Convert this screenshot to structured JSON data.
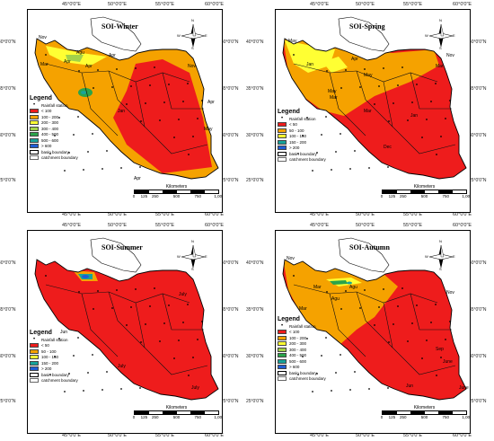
{
  "colors": {
    "red": "#ee1c1c",
    "orange": "#f5a200",
    "yellow": "#ffff33",
    "lime": "#a3d14a",
    "green": "#2aa34a",
    "teal": "#16a39a",
    "blue": "#1f5dd4"
  },
  "axes": {
    "x_ticks": [
      "45°0'0\"E",
      "50°0'0\"E",
      "55°0'0\"E",
      "60°0'0\"E"
    ],
    "y_ticks": [
      "40°0'0\"N",
      "35°0'0\"N",
      "30°0'0\"N",
      "25°0'0\"N"
    ]
  },
  "compass_letters": [
    "N",
    "E",
    "S",
    "W"
  ],
  "scale": {
    "title": "Kilometers",
    "ticks": [
      "0",
      "125",
      "250",
      "500",
      "750",
      "1,000"
    ]
  },
  "panels": [
    {
      "title": "SOI-Winter",
      "legend_title": "Legend",
      "station_label": "Rainfall station",
      "classes": [
        {
          "label": "< 100",
          "color": "#ee1c1c"
        },
        {
          "label": "100 - 200",
          "color": "#f5a200"
        },
        {
          "label": "200 - 300",
          "color": "#ffff33"
        },
        {
          "label": "300 - 400",
          "color": "#a3d14a"
        },
        {
          "label": "400 - 500",
          "color": "#2aa34a"
        },
        {
          "label": "500 - 600",
          "color": "#16a39a"
        },
        {
          "label": "> 600",
          "color": "#1f5dd4"
        }
      ],
      "boundary_labels": [
        "basin boundary",
        "catchment boundary"
      ],
      "month_labels": [
        "Nov",
        "Mar",
        "Apr",
        "Agu",
        "Apr",
        "Apr",
        "Nov",
        "Apr",
        "May",
        "Apr",
        "Jan"
      ]
    },
    {
      "title": "SOI-Spring",
      "legend_title": "Legend",
      "station_label": "Rainfall station",
      "classes": [
        {
          "label": "< 50",
          "color": "#ee1c1c"
        },
        {
          "label": "50 - 100",
          "color": "#f5a200"
        },
        {
          "label": "100 - 150",
          "color": "#ffff33"
        },
        {
          "label": "150 - 200",
          "color": "#16a39a"
        },
        {
          "label": "> 200",
          "color": "#1f5dd4"
        }
      ],
      "boundary_labels": [
        "basin boundary",
        "catchment boundary"
      ],
      "month_labels": [
        "May",
        "Jan",
        "Nov",
        "Mar",
        "May",
        "Mar",
        "May",
        "Apr",
        "Dec",
        "Mar",
        "Jan"
      ]
    },
    {
      "title": "SOI-Summer",
      "legend_title": "Legend",
      "station_label": "Rainfall station",
      "classes": [
        {
          "label": "< 50",
          "color": "#ee1c1c"
        },
        {
          "label": "50 - 100",
          "color": "#f5a200"
        },
        {
          "label": "100 - 150",
          "color": "#ffff33"
        },
        {
          "label": "150 - 200",
          "color": "#16a39a"
        },
        {
          "label": "> 200",
          "color": "#1f5dd4"
        }
      ],
      "boundary_labels": [
        "basin boundary",
        "catchment boundary"
      ],
      "month_labels": [
        "July",
        "July",
        "Jun",
        "July"
      ]
    },
    {
      "title": "SOI-Autumn",
      "legend_title": "Legend",
      "station_label": "Rainfall station",
      "classes": [
        {
          "label": "< 100",
          "color": "#ee1c1c"
        },
        {
          "label": "100 - 200",
          "color": "#f5a200"
        },
        {
          "label": "200 - 300",
          "color": "#ffff33"
        },
        {
          "label": "300 - 400",
          "color": "#a3d14a"
        },
        {
          "label": "400 - 500",
          "color": "#2aa34a"
        },
        {
          "label": "500 - 600",
          "color": "#16a39a"
        },
        {
          "label": "> 600",
          "color": "#1f5dd4"
        }
      ],
      "boundary_labels": [
        "basin boundary",
        "catchment boundary"
      ],
      "month_labels": [
        "Nov",
        "Mar",
        "Agu",
        "Agu",
        "Nov",
        "Mar",
        "Sep",
        "June",
        "June",
        "Jun"
      ]
    }
  ]
}
